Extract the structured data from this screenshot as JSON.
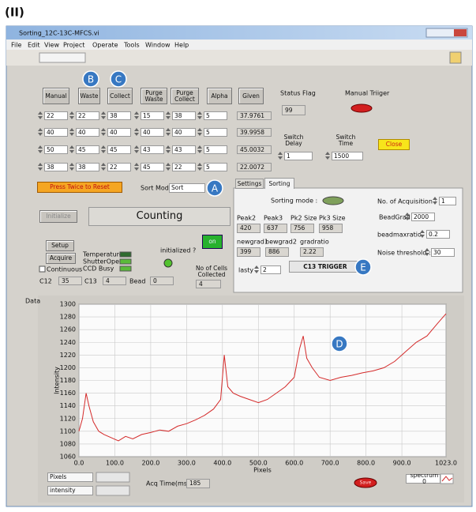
{
  "caption": "(II)",
  "window": {
    "title": "Sorting_12C-13C-MFCS.vi",
    "menu": [
      "File",
      "Edit",
      "View",
      "Project",
      "Operate",
      "Tools",
      "Window",
      "Help"
    ]
  },
  "markers": [
    "A",
    "B",
    "C",
    "D",
    "E"
  ],
  "buttons": [
    "Manual",
    "Waste",
    "Collect",
    "Purge Waste",
    "Purge Collect",
    "Alpha",
    "Given"
  ],
  "grid_rows": [
    [
      22,
      22,
      38,
      15,
      38,
      5
    ],
    [
      40,
      40,
      40,
      40,
      40,
      5
    ],
    [
      50,
      45,
      45,
      43,
      43,
      5
    ],
    [
      38,
      38,
      22,
      45,
      22,
      5
    ]
  ],
  "given": [
    37.9761,
    39.9958,
    45.0032,
    22.0072
  ],
  "status_flag": {
    "label": "Status Flag",
    "value": 99
  },
  "manual_trigger": "Manual Triiger",
  "switch_delay": {
    "label": "Switch Delay",
    "value": 1
  },
  "switch_time": {
    "label": "Switch Time",
    "value": 1500
  },
  "close": "Close",
  "reset": "Press Twice to Reset",
  "sort_mode": {
    "label": "Sort Mode",
    "value": "Sort"
  },
  "tabs": [
    "Settings",
    "Sorting"
  ],
  "sorting": {
    "mode_label": "Sorting mode :",
    "acquisitions": {
      "label": "No. of Acquisition :",
      "value": 1
    },
    "peaks": {
      "labels": [
        "Peak2",
        "Peak3",
        "Pk2 Size",
        "Pk3 Size"
      ],
      "values": [
        420,
        637,
        756,
        958
      ]
    },
    "beadgrad": {
      "label": "BeadGrad",
      "value": 2000
    },
    "beadmaxratio": {
      "label": "beadmaxratio",
      "value": 0.2
    },
    "grads": {
      "labels": [
        "newgrad1",
        "newgrad2",
        "gradratio"
      ],
      "values": [
        399,
        886,
        2.22
      ]
    },
    "noise_threshold": {
      "label": "Noise threshold :",
      "value": 30
    },
    "lasty": {
      "label": "lasty",
      "value": 2
    },
    "trigger": "C13 TRIGGER"
  },
  "initialize": "Initialize",
  "status": "Counting",
  "setup": "Setup",
  "acquire": "Acquire",
  "continuous": "Continuous",
  "indicators": [
    "Temperature",
    "ShutterOpen",
    "CCD Busy"
  ],
  "initialized": "initialized ?",
  "on": "on",
  "cells": {
    "label": "No of Cells Collected",
    "value": 4
  },
  "counts": [
    {
      "label": "C12",
      "value": 35
    },
    {
      "label": "C13",
      "value": 4
    },
    {
      "label": "Bead",
      "value": 0
    }
  ],
  "chart_data": {
    "type": "line",
    "title": "Data",
    "x_label": "Pixels",
    "y_label": "Intensity",
    "grid": true,
    "xlim": [
      0,
      1023
    ],
    "xticks": [
      {
        "value": 0,
        "label": "0.0"
      },
      {
        "value": 100,
        "label": "100.0"
      },
      {
        "value": 200,
        "label": "200.0"
      },
      {
        "value": 300,
        "label": "300.0"
      },
      {
        "value": 400,
        "label": "400.0"
      },
      {
        "value": 500,
        "label": "500.0"
      },
      {
        "value": 600,
        "label": "600.0"
      },
      {
        "value": 700,
        "label": "700.0"
      },
      {
        "value": 800,
        "label": "800.0"
      },
      {
        "value": 900,
        "label": "900.0"
      },
      {
        "value": 1023,
        "label": "1023.0"
      }
    ],
    "ylim": [
      1060,
      1300
    ],
    "yticks": [
      1060,
      1080,
      1100,
      1120,
      1140,
      1160,
      1180,
      1200,
      1220,
      1240,
      1260,
      1280,
      1300
    ],
    "x": [
      0,
      10,
      20,
      28,
      40,
      55,
      70,
      90,
      110,
      130,
      150,
      175,
      200,
      225,
      250,
      275,
      300,
      325,
      350,
      375,
      395,
      405,
      415,
      430,
      450,
      475,
      500,
      525,
      550,
      575,
      600,
      615,
      625,
      635,
      650,
      670,
      700,
      730,
      760,
      790,
      820,
      850,
      880,
      910,
      940,
      970,
      1000,
      1023
    ],
    "series": [
      {
        "name": "spectrum 0",
        "color": "#d42a2a",
        "values": [
          1100,
          1120,
          1160,
          1140,
          1115,
          1100,
          1095,
          1090,
          1085,
          1092,
          1088,
          1095,
          1098,
          1102,
          1100,
          1108,
          1112,
          1118,
          1125,
          1135,
          1150,
          1220,
          1170,
          1160,
          1155,
          1150,
          1145,
          1150,
          1160,
          1170,
          1185,
          1230,
          1250,
          1215,
          1200,
          1185,
          1180,
          1185,
          1188,
          1192,
          1195,
          1200,
          1210,
          1225,
          1240,
          1250,
          1270,
          1285
        ]
      }
    ]
  },
  "scale_legend": [
    "Pixels",
    "intensity"
  ],
  "acq_time": {
    "label": "Acq Time(ms)",
    "value": 185
  },
  "save": "Save"
}
